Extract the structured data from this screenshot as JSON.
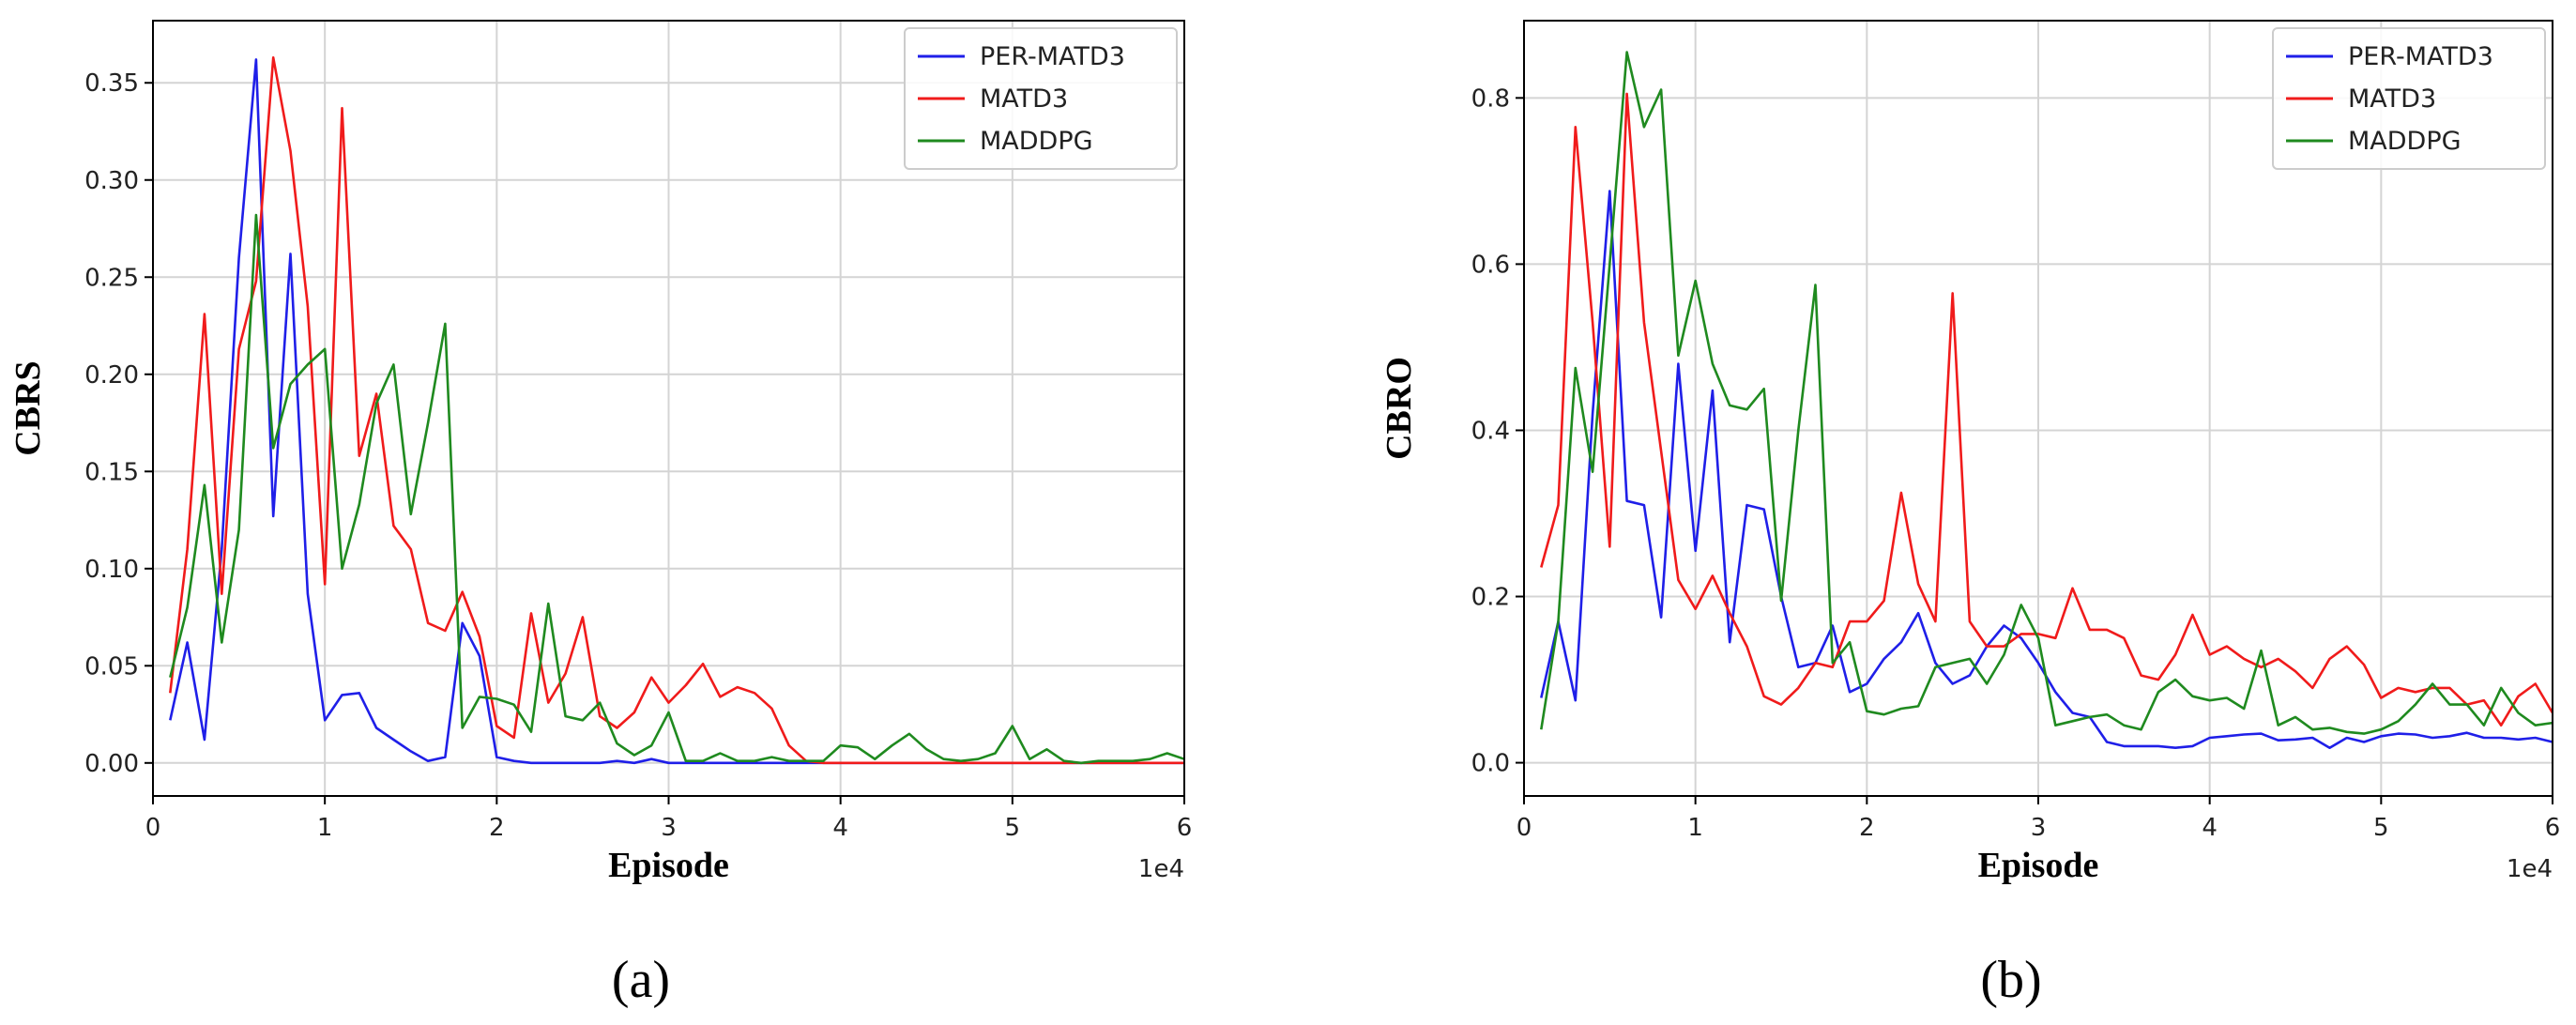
{
  "chart_data": [
    {
      "type": "line",
      "panel_label": "(a)",
      "xlabel": "Episode",
      "ylabel": "CBRS",
      "x_offset_label": "1e4",
      "xlim": [
        0,
        6
      ],
      "ylim": [
        -0.017,
        0.382
      ],
      "xticks": [
        0,
        1,
        2,
        3,
        4,
        5,
        6
      ],
      "xtick_labels": [
        "0",
        "1",
        "2",
        "3",
        "4",
        "5",
        "6"
      ],
      "yticks": [
        0.0,
        0.05,
        0.1,
        0.15,
        0.2,
        0.25,
        0.3,
        0.35
      ],
      "ytick_labels": [
        "0.00",
        "0.05",
        "0.10",
        "0.15",
        "0.20",
        "0.25",
        "0.30",
        "0.35"
      ],
      "grid": true,
      "legend_position": "top-right",
      "x": [
        0.1,
        0.2,
        0.3,
        0.4,
        0.5,
        0.6,
        0.7,
        0.8,
        0.9,
        1.0,
        1.1,
        1.2,
        1.3,
        1.4,
        1.5,
        1.6,
        1.7,
        1.8,
        1.9,
        2.0,
        2.1,
        2.2,
        2.3,
        2.4,
        2.5,
        2.6,
        2.7,
        2.8,
        2.9,
        3.0,
        3.1,
        3.2,
        3.3,
        3.4,
        3.5,
        3.6,
        3.7,
        3.8,
        3.9,
        4.0,
        4.1,
        4.2,
        4.3,
        4.4,
        4.5,
        4.6,
        4.7,
        4.8,
        4.9,
        5.0,
        5.1,
        5.2,
        5.3,
        5.4,
        5.5,
        5.6,
        5.7,
        5.8,
        5.9,
        6.0
      ],
      "series": [
        {
          "name": "PER-MATD3",
          "color": "#1f1fe8",
          "values": [
            0.022,
            0.062,
            0.012,
            0.11,
            0.26,
            0.362,
            0.127,
            0.262,
            0.087,
            0.022,
            0.035,
            0.036,
            0.018,
            0.012,
            0.006,
            0.001,
            0.003,
            0.072,
            0.055,
            0.003,
            0.001,
            0.0,
            0.0,
            0.0,
            0.0,
            0.0,
            0.001,
            0.0,
            0.002,
            0.0,
            0.0,
            0.0,
            0.0,
            0.0,
            0.0,
            0.0,
            0.0,
            0.0,
            0.0,
            0.0,
            0.0,
            0.0,
            0.0,
            0.0,
            0.0,
            0.0,
            0.0,
            0.0,
            0.0,
            0.0,
            0.0,
            0.0,
            0.0,
            0.0,
            0.0,
            0.0,
            0.0,
            0.0,
            0.0,
            0.0
          ]
        },
        {
          "name": "MATD3",
          "color": "#f01b1b",
          "values": [
            0.036,
            0.11,
            0.231,
            0.087,
            0.213,
            0.248,
            0.363,
            0.315,
            0.235,
            0.092,
            0.337,
            0.158,
            0.19,
            0.122,
            0.11,
            0.072,
            0.068,
            0.088,
            0.065,
            0.019,
            0.013,
            0.077,
            0.031,
            0.046,
            0.075,
            0.024,
            0.018,
            0.026,
            0.044,
            0.031,
            0.04,
            0.051,
            0.034,
            0.039,
            0.036,
            0.028,
            0.009,
            0.001,
            0.0,
            0.0,
            0.0,
            0.0,
            0.0,
            0.0,
            0.0,
            0.0,
            0.0,
            0.0,
            0.0,
            0.0,
            0.0,
            0.0,
            0.0,
            0.0,
            0.0,
            0.0,
            0.0,
            0.0,
            0.0,
            0.0
          ]
        },
        {
          "name": "MADDPG",
          "color": "#1f8a1f",
          "values": [
            0.044,
            0.08,
            0.143,
            0.062,
            0.12,
            0.282,
            0.162,
            0.195,
            0.205,
            0.213,
            0.1,
            0.133,
            0.185,
            0.205,
            0.128,
            0.175,
            0.226,
            0.018,
            0.034,
            0.033,
            0.03,
            0.016,
            0.082,
            0.024,
            0.022,
            0.031,
            0.01,
            0.004,
            0.009,
            0.026,
            0.001,
            0.001,
            0.005,
            0.001,
            0.001,
            0.003,
            0.001,
            0.001,
            0.001,
            0.009,
            0.008,
            0.002,
            0.009,
            0.015,
            0.007,
            0.002,
            0.001,
            0.002,
            0.005,
            0.019,
            0.002,
            0.007,
            0.001,
            0.0,
            0.001,
            0.001,
            0.001,
            0.002,
            0.005,
            0.002
          ]
        }
      ]
    },
    {
      "type": "line",
      "panel_label": "(b)",
      "xlabel": "Episode",
      "ylabel": "CBRO",
      "x_offset_label": "1e4",
      "xlim": [
        0,
        6
      ],
      "ylim": [
        -0.04,
        0.893
      ],
      "xticks": [
        0,
        1,
        2,
        3,
        4,
        5,
        6
      ],
      "xtick_labels": [
        "0",
        "1",
        "2",
        "3",
        "4",
        "5",
        "6"
      ],
      "yticks": [
        0.0,
        0.2,
        0.4,
        0.6,
        0.8
      ],
      "ytick_labels": [
        "0.0",
        "0.2",
        "0.4",
        "0.6",
        "0.8"
      ],
      "grid": true,
      "legend_position": "top-right",
      "x": [
        0.1,
        0.2,
        0.3,
        0.4,
        0.5,
        0.6,
        0.7,
        0.8,
        0.9,
        1.0,
        1.1,
        1.2,
        1.3,
        1.4,
        1.5,
        1.6,
        1.7,
        1.8,
        1.9,
        2.0,
        2.1,
        2.2,
        2.3,
        2.4,
        2.5,
        2.6,
        2.7,
        2.8,
        2.9,
        3.0,
        3.1,
        3.2,
        3.3,
        3.4,
        3.5,
        3.6,
        3.7,
        3.8,
        3.9,
        4.0,
        4.1,
        4.2,
        4.3,
        4.4,
        4.5,
        4.6,
        4.7,
        4.8,
        4.9,
        5.0,
        5.1,
        5.2,
        5.3,
        5.4,
        5.5,
        5.6,
        5.7,
        5.8,
        5.9,
        6.0
      ],
      "series": [
        {
          "name": "PER-MATD3",
          "color": "#1f1fe8",
          "values": [
            0.078,
            0.17,
            0.075,
            0.42,
            0.688,
            0.315,
            0.31,
            0.175,
            0.48,
            0.255,
            0.448,
            0.145,
            0.31,
            0.305,
            0.2,
            0.115,
            0.12,
            0.165,
            0.085,
            0.095,
            0.125,
            0.145,
            0.18,
            0.12,
            0.095,
            0.105,
            0.14,
            0.165,
            0.15,
            0.12,
            0.085,
            0.06,
            0.055,
            0.025,
            0.02,
            0.02,
            0.02,
            0.018,
            0.02,
            0.03,
            0.032,
            0.034,
            0.035,
            0.027,
            0.028,
            0.03,
            0.018,
            0.03,
            0.025,
            0.032,
            0.035,
            0.034,
            0.03,
            0.032,
            0.036,
            0.03,
            0.03,
            0.028,
            0.03,
            0.025
          ]
        },
        {
          "name": "MATD3",
          "color": "#f01b1b",
          "values": [
            0.235,
            0.31,
            0.765,
            0.53,
            0.26,
            0.805,
            0.53,
            0.375,
            0.22,
            0.185,
            0.225,
            0.18,
            0.14,
            0.08,
            0.07,
            0.09,
            0.12,
            0.115,
            0.17,
            0.17,
            0.195,
            0.325,
            0.215,
            0.17,
            0.565,
            0.17,
            0.14,
            0.14,
            0.155,
            0.155,
            0.15,
            0.21,
            0.16,
            0.16,
            0.15,
            0.105,
            0.1,
            0.13,
            0.178,
            0.13,
            0.14,
            0.125,
            0.115,
            0.125,
            0.11,
            0.09,
            0.125,
            0.14,
            0.118,
            0.078,
            0.09,
            0.085,
            0.09,
            0.09,
            0.07,
            0.075,
            0.045,
            0.08,
            0.095,
            0.06
          ]
        },
        {
          "name": "MADDPG",
          "color": "#1f8a1f",
          "values": [
            0.04,
            0.17,
            0.475,
            0.35,
            0.6,
            0.855,
            0.765,
            0.81,
            0.49,
            0.58,
            0.48,
            0.43,
            0.425,
            0.45,
            0.195,
            0.4,
            0.575,
            0.12,
            0.145,
            0.062,
            0.058,
            0.065,
            0.068,
            0.115,
            0.12,
            0.125,
            0.095,
            0.13,
            0.19,
            0.15,
            0.045,
            0.05,
            0.055,
            0.058,
            0.045,
            0.04,
            0.085,
            0.1,
            0.08,
            0.075,
            0.078,
            0.065,
            0.135,
            0.045,
            0.055,
            0.04,
            0.042,
            0.037,
            0.035,
            0.04,
            0.05,
            0.07,
            0.095,
            0.07,
            0.07,
            0.045,
            0.09,
            0.06,
            0.045,
            0.048
          ]
        }
      ]
    }
  ]
}
